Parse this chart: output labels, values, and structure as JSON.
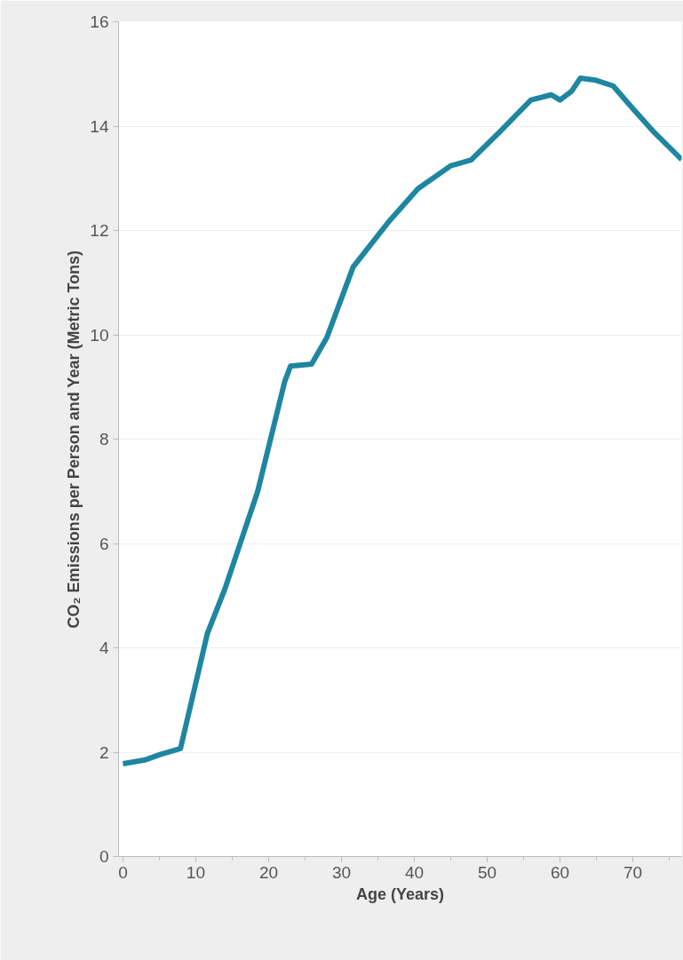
{
  "chart_data": {
    "type": "line",
    "xlabel": "Age (Years)",
    "ylabel": "CO₂ Emissions per Person and Year (Metric Tons)",
    "x": [
      0,
      3,
      5,
      7.9,
      11.6,
      14,
      18.5,
      22.2,
      23,
      25.9,
      28,
      31.6,
      36.5,
      40.5,
      45,
      47.8,
      51.8,
      56,
      58.8,
      60,
      61.6,
      62.8,
      64.9,
      67.3,
      70.1,
      73,
      76.7
    ],
    "series": [
      {
        "color": "#1f86a1",
        "values": [
          1.78,
          1.85,
          1.95,
          2.07,
          4.28,
          5.13,
          7.0,
          9.1,
          9.4,
          9.44,
          9.95,
          11.3,
          12.17,
          12.8,
          13.24,
          13.35,
          13.9,
          14.5,
          14.6,
          14.5,
          14.67,
          14.92,
          14.88,
          14.77,
          14.32,
          13.87,
          13.36
        ]
      }
    ],
    "xlim": [
      -0.6,
      76.7
    ],
    "ylim": [
      0,
      16
    ],
    "xticks": [
      0,
      10,
      20,
      30,
      40,
      50,
      60,
      70
    ],
    "yticks": [
      0,
      2,
      4,
      6,
      8,
      10,
      12,
      14,
      16
    ],
    "grid": "y",
    "marker": "none",
    "line_style": "solid"
  }
}
